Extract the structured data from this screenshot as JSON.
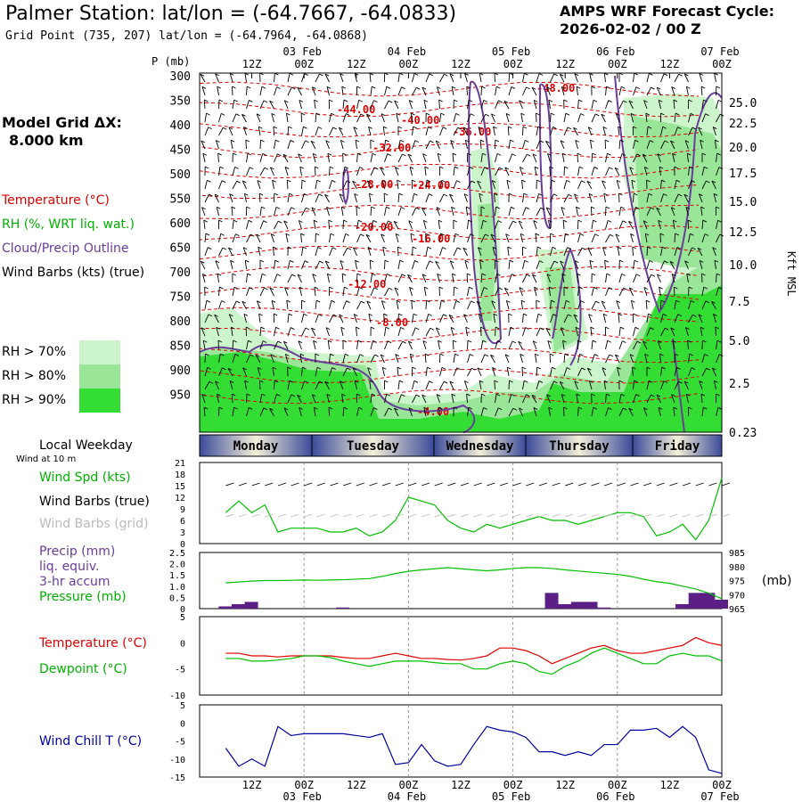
{
  "header": {
    "title": "Palmer Station:  lat/lon = (-64.7667, -64.0833)",
    "grid_point": "Grid Point (735, 207) lat/lon = (-64.7964, -64.0868)",
    "cycle_line1": "AMPS WRF Forecast Cycle:",
    "cycle_line2": "2026-02-02 / 00  Z"
  },
  "model_grid": {
    "label": "Model Grid ΔX:",
    "value": "8.000 km"
  },
  "legend_top": {
    "temperature": "Temperature (°C)",
    "rh": "RH (%, WRT liq. wat.)",
    "cloud": "Cloud/Precip Outline",
    "wind": "Wind Barbs (kts) (true)"
  },
  "rh_legend": {
    "items": [
      {
        "label": "RH > 70%",
        "color": "#ccf5cc"
      },
      {
        "label": "RH > 80%",
        "color": "#99e699"
      },
      {
        "label": "RH > 90%",
        "color": "#33dd33"
      }
    ]
  },
  "colors": {
    "temp": "#e00000",
    "rh_green": "#00cc00",
    "cloud": "#6a3d9a",
    "precip": "#5b1f86",
    "wind_chill": "#0000a0",
    "dewpoint": "#00c000",
    "weekday_blue": "#4a5aa8"
  },
  "time_axis": {
    "top_dates": [
      "03 Feb",
      "04 Feb",
      "05 Feb",
      "06 Feb",
      "07 Feb"
    ],
    "bottom_dates": [
      "03 Feb",
      "04 Feb",
      "05 Feb",
      "06 Feb",
      "07 Feb"
    ],
    "ticks": [
      "12Z",
      "00Z",
      "12Z",
      "00Z",
      "12Z",
      "00Z",
      "12Z",
      "00Z",
      "12Z",
      "00Z"
    ]
  },
  "weekday": {
    "header": "Local Weekday",
    "wind_note": "Wind at 10 m",
    "days": [
      "Monday",
      "Tuesday",
      "Wednesday",
      "Thursday",
      "Friday"
    ]
  },
  "cross_section": {
    "p_label": "P (mb)",
    "pressure_ticks": [
      "300",
      "350",
      "400",
      "450",
      "500",
      "550",
      "600",
      "650",
      "700",
      "750",
      "800",
      "850",
      "900",
      "950"
    ],
    "height_ticks": [
      "25.0",
      "22.5",
      "20.0",
      "17.5",
      "15.0",
      "12.5",
      "10.0",
      "7.5",
      "5.0",
      "2.5",
      "0.23"
    ],
    "height_label": "Kft MSL",
    "contours": [
      "-44.00",
      "-40.00",
      "-36.00",
      "-32.00",
      "-28.00",
      "-24.00",
      "-20.00",
      "-16.00",
      "-12.00",
      "-8.00",
      "-4.00",
      "-48.00"
    ]
  },
  "panel_wind": {
    "labels": {
      "speed": "Wind Spd (kts)",
      "barbs_true": "Wind Barbs (true)",
      "barbs_grid": "Wind Barbs (grid)"
    },
    "y_ticks": [
      "21",
      "18",
      "15",
      "12",
      "9",
      "6",
      "3",
      "0"
    ]
  },
  "panel_precip": {
    "labels": {
      "precip": "Precip (mm)",
      "liq": "liq. equiv.",
      "accum": "3-hr accum",
      "pressure": "Pressure (mb)",
      "units": "(mb)"
    },
    "left_ticks": [
      "2.5",
      "2.0",
      "1.5",
      "1.0",
      "0.5",
      "0"
    ],
    "right_ticks": [
      "985",
      "980",
      "975",
      "970",
      "965"
    ]
  },
  "panel_temp": {
    "labels": {
      "temp": "Temperature (°C)",
      "dew": "Dewpoint (°C)"
    },
    "y_ticks": [
      "5",
      "0",
      "-5",
      "-10"
    ]
  },
  "panel_chill": {
    "labels": {
      "chill": "Wind Chill T (°C)"
    },
    "y_ticks": [
      "5",
      "0",
      "-5",
      "-10",
      "-15"
    ]
  },
  "chart_data": [
    {
      "type": "line",
      "title": "Wind Spd (kts)",
      "x_hours": [
        6,
        9,
        12,
        15,
        18,
        21,
        24,
        27,
        30,
        33,
        36,
        39,
        42,
        45,
        48,
        51,
        54,
        57,
        60,
        63,
        66,
        69,
        72,
        75,
        78,
        81,
        84,
        87,
        90,
        93,
        96,
        99,
        102,
        105,
        108,
        111,
        114,
        117,
        120
      ],
      "series": [
        {
          "name": "Wind Spd (kts)",
          "values": [
            8,
            11,
            8,
            10,
            3,
            4,
            4,
            4,
            3,
            3,
            4,
            2,
            3,
            6,
            12,
            11,
            10,
            6,
            4,
            3,
            5,
            4,
            5,
            6,
            7,
            6,
            6,
            5,
            6,
            7,
            8,
            8,
            7,
            2,
            3,
            5,
            1,
            6,
            17
          ]
        }
      ],
      "ylim": [
        0,
        21
      ]
    },
    {
      "type": "bar",
      "title": "Precip (mm)",
      "x_hours": [
        6,
        9,
        12,
        15,
        18,
        21,
        24,
        27,
        30,
        33,
        36,
        39,
        42,
        45,
        48,
        51,
        54,
        57,
        60,
        63,
        66,
        69,
        72,
        75,
        78,
        81,
        84,
        87,
        90,
        93,
        96,
        99,
        102,
        105,
        108,
        111,
        114,
        117,
        120
      ],
      "series": [
        {
          "name": "Precip (mm)",
          "values": [
            0.1,
            0.2,
            0.3,
            0,
            0,
            0,
            0,
            0,
            0,
            0.05,
            0,
            0,
            0,
            0,
            0,
            0,
            0,
            0,
            0,
            0,
            0,
            0,
            0,
            0,
            0,
            0.7,
            0.2,
            0.3,
            0.3,
            0.05,
            0,
            0,
            0,
            0,
            0,
            0.2,
            0.7,
            0.7,
            0.4
          ]
        }
      ],
      "ylim": [
        0,
        2.5
      ]
    },
    {
      "type": "line",
      "title": "Pressure (mb)",
      "x_hours": [
        6,
        9,
        12,
        15,
        18,
        21,
        24,
        27,
        30,
        33,
        36,
        39,
        42,
        45,
        48,
        51,
        54,
        57,
        60,
        63,
        66,
        69,
        72,
        75,
        78,
        81,
        84,
        87,
        90,
        93,
        96,
        99,
        102,
        105,
        108,
        111,
        114,
        117,
        120
      ],
      "series": [
        {
          "name": "Pressure (mb)",
          "values": [
            974.2,
            974.5,
            974.8,
            975.0,
            975.0,
            975.1,
            975.2,
            975.1,
            975.2,
            975.3,
            975.5,
            975.7,
            976.5,
            977.5,
            978.3,
            978.8,
            979.2,
            979.6,
            979.2,
            978.8,
            978.5,
            978.8,
            979.3,
            979.6,
            979.6,
            979.3,
            978.8,
            978.4,
            978.0,
            977.6,
            977.2,
            976.5,
            975.5,
            974.6,
            974.0,
            973.0,
            972.0,
            970.5,
            968.5
          ]
        }
      ],
      "ylim": [
        965,
        985
      ]
    },
    {
      "type": "line",
      "title": "Temperature / Dewpoint",
      "x_hours": [
        6,
        9,
        12,
        15,
        18,
        21,
        24,
        27,
        30,
        33,
        36,
        39,
        42,
        45,
        48,
        51,
        54,
        57,
        60,
        63,
        66,
        69,
        72,
        75,
        78,
        81,
        84,
        87,
        90,
        93,
        96,
        99,
        102,
        105,
        108,
        111,
        114,
        117,
        120
      ],
      "series": [
        {
          "name": "Temperature (°C)",
          "values": [
            -2,
            -2,
            -2.5,
            -2.5,
            -2.7,
            -2.5,
            -2.5,
            -2.5,
            -2.5,
            -2.8,
            -3,
            -3,
            -2.5,
            -2,
            -2.5,
            -3,
            -3,
            -3.2,
            -3.3,
            -3,
            -2.5,
            -1,
            -1,
            -1.5,
            -2.5,
            -4,
            -3,
            -2,
            -1,
            -0.5,
            -1.5,
            -2,
            -2,
            -1.5,
            -1,
            -0.5,
            1,
            0,
            -0.5
          ]
        },
        {
          "name": "Dewpoint (°C)",
          "values": [
            -3,
            -3,
            -3.5,
            -3.5,
            -3.3,
            -3,
            -2.5,
            -2.5,
            -2.8,
            -3.5,
            -4,
            -4.5,
            -4,
            -3.5,
            -3.5,
            -3.5,
            -3.8,
            -4,
            -4,
            -5,
            -5,
            -4,
            -3.5,
            -4,
            -5.5,
            -6,
            -4.5,
            -3.5,
            -2,
            -1,
            -2,
            -3,
            -4,
            -4,
            -2.5,
            -2,
            -2.5,
            -2.5,
            -3.5
          ]
        }
      ],
      "ylim": [
        -10,
        5
      ]
    },
    {
      "type": "line",
      "title": "Wind Chill T (°C)",
      "x_hours": [
        6,
        9,
        12,
        15,
        18,
        21,
        24,
        27,
        30,
        33,
        36,
        39,
        42,
        45,
        48,
        51,
        54,
        57,
        60,
        63,
        66,
        69,
        72,
        75,
        78,
        81,
        84,
        87,
        90,
        93,
        96,
        99,
        102,
        105,
        108,
        111,
        114,
        117,
        120
      ],
      "series": [
        {
          "name": "Wind Chill T (°C)",
          "values": [
            -7,
            -12,
            -10,
            -12,
            -1,
            -3.5,
            -3,
            -3,
            -3,
            -3,
            -3.5,
            -4,
            -3,
            -11.5,
            -11,
            -6,
            -10.5,
            -12,
            -11.5,
            -6,
            -1,
            -2,
            -2.5,
            -4,
            -8,
            -8,
            -9,
            -8,
            -9,
            -6,
            -6,
            -2,
            -2,
            -1.5,
            -4,
            -1,
            -4,
            -13,
            -14
          ]
        }
      ],
      "ylim": [
        -15,
        5
      ]
    }
  ]
}
